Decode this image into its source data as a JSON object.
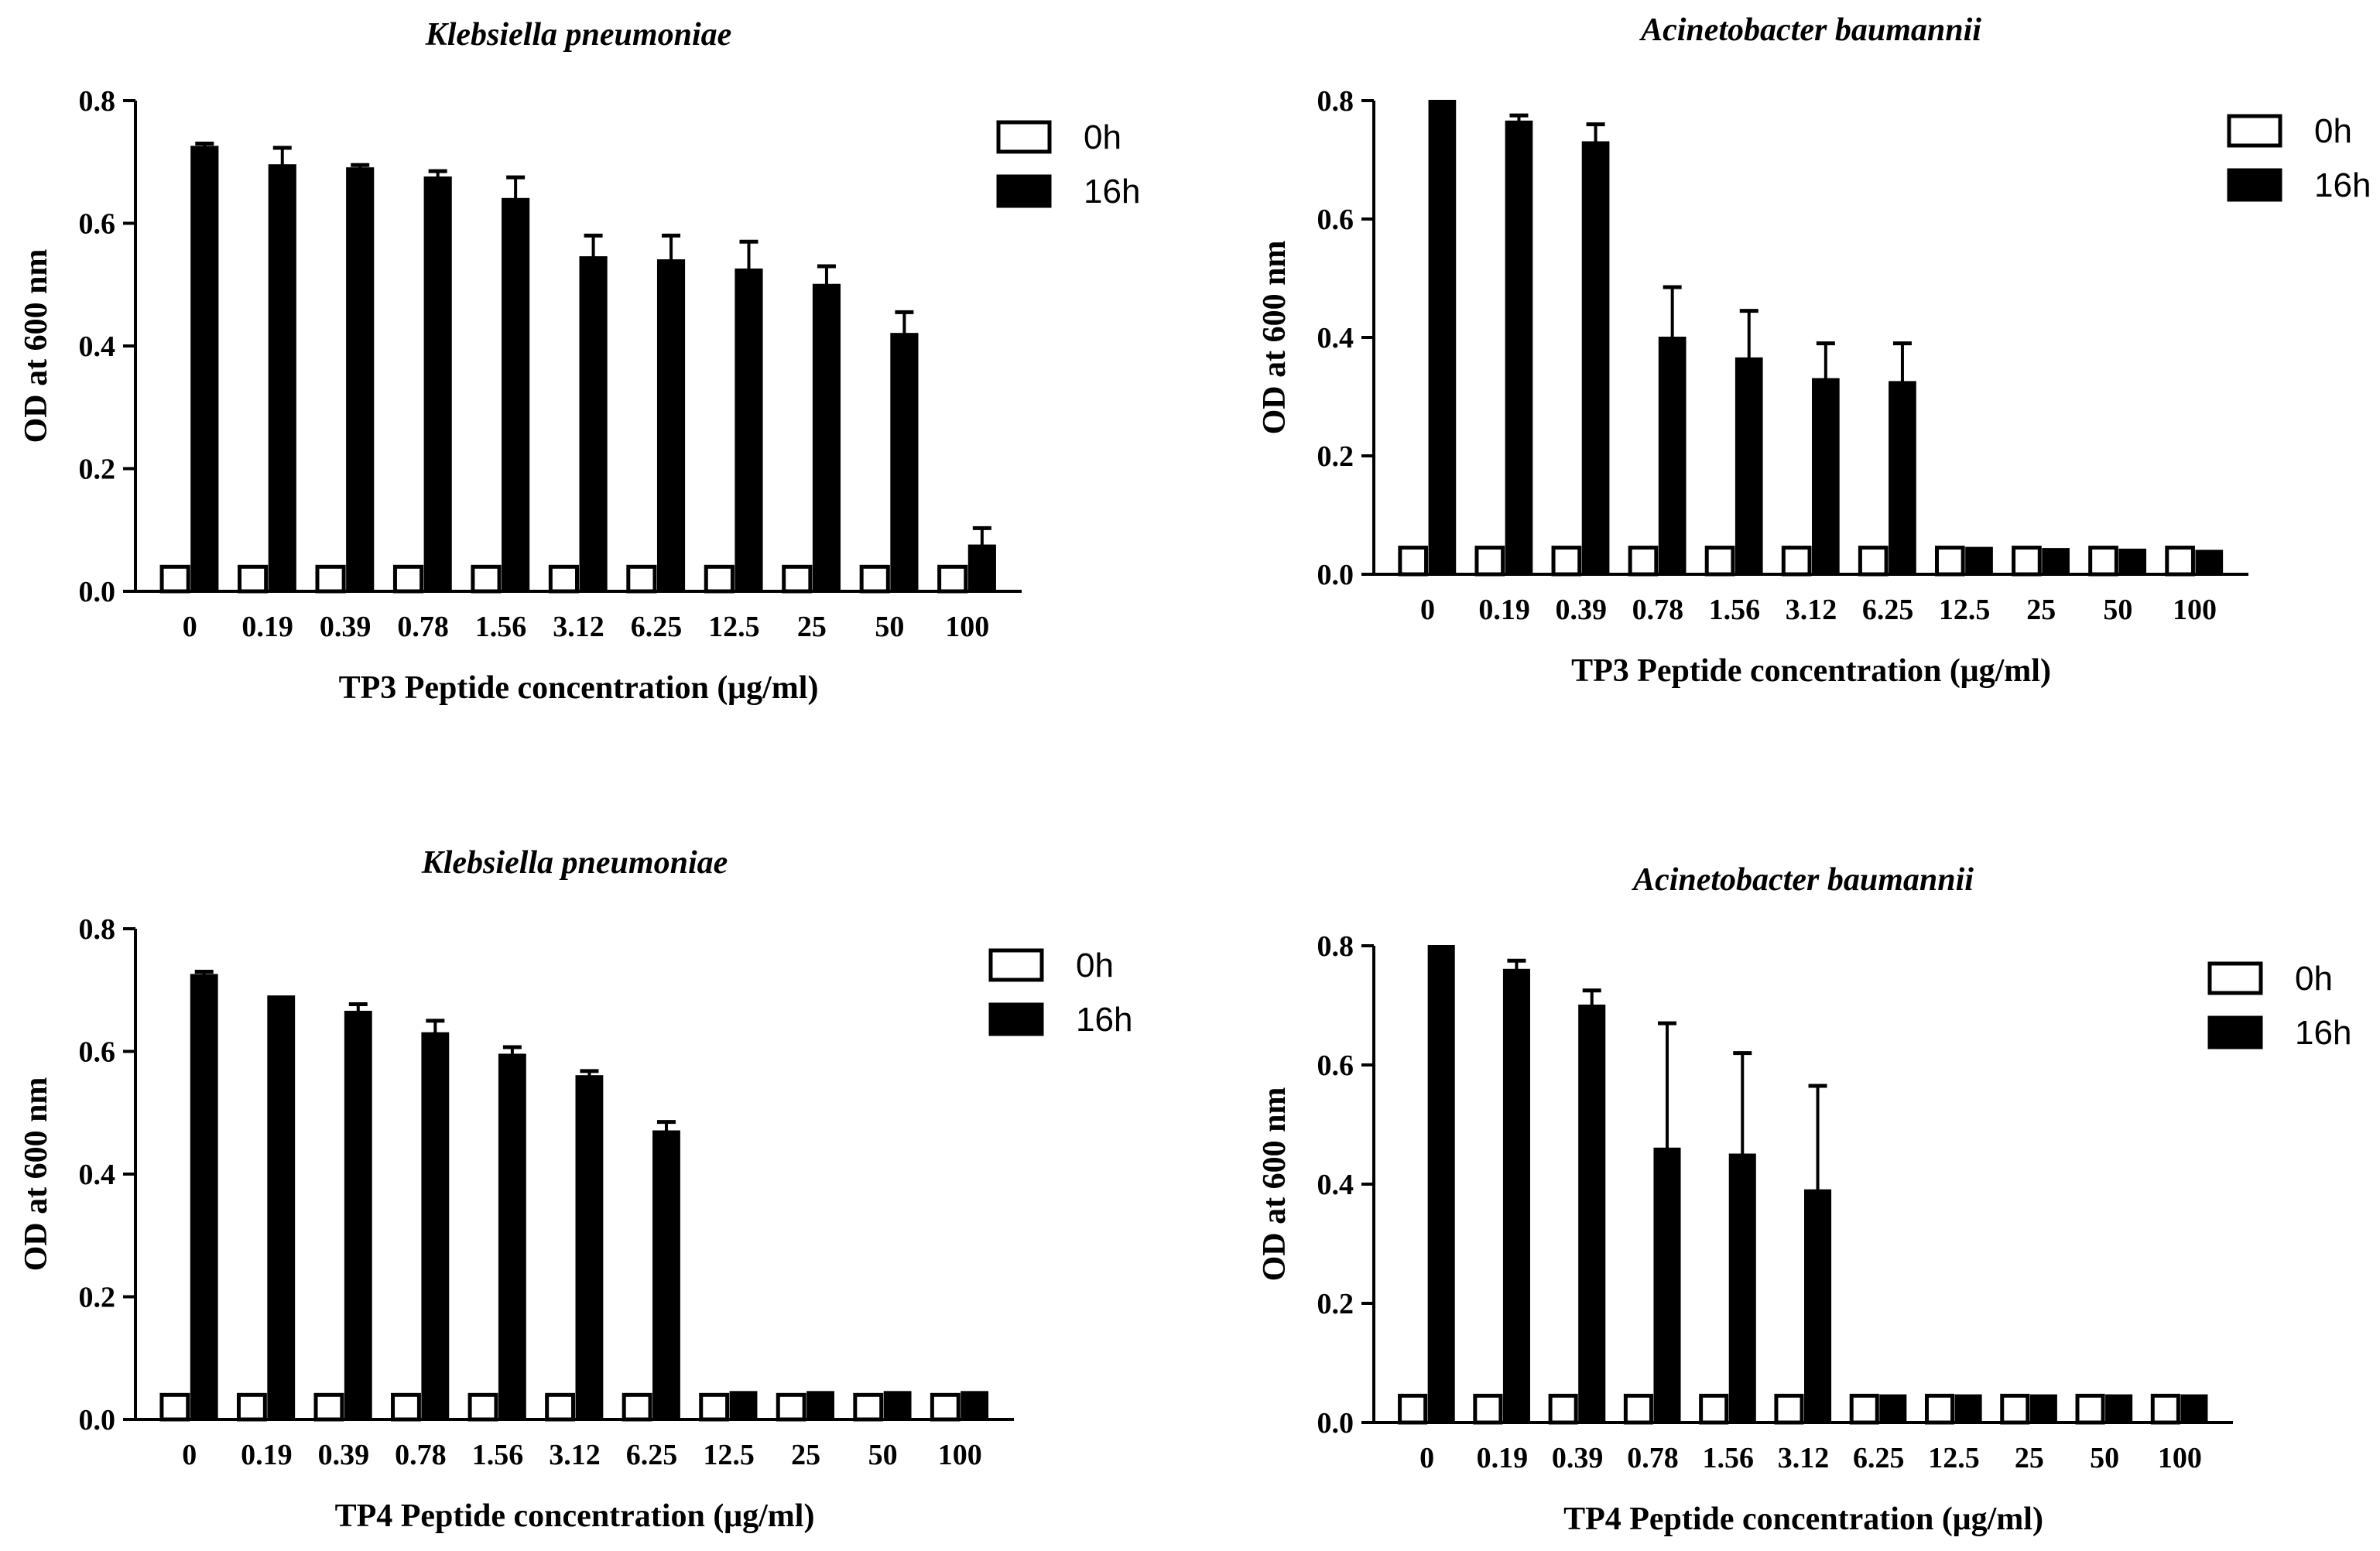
{
  "chart_data": [
    {
      "type": "bar",
      "title": "Klebsiella pneumoniae",
      "xlabel": "TP3 Peptide concentration (μg/ml)",
      "ylabel": "OD at 600 nm",
      "ylim": [
        0,
        0.8
      ],
      "yticks": [
        "0.0",
        "0.2",
        "0.4",
        "0.6",
        "0.8"
      ],
      "categories": [
        "0",
        "0.19",
        "0.39",
        "0.78",
        "1.56",
        "3.12",
        "6.25",
        "12.5",
        "25",
        "50",
        "100"
      ],
      "legend_position": "top-right",
      "series": [
        {
          "name": "0h",
          "fill": "#ffffff",
          "values": [
            0.04,
            0.04,
            0.04,
            0.04,
            0.04,
            0.04,
            0.04,
            0.04,
            0.04,
            0.04,
            0.04
          ],
          "errors": [
            0.003,
            0.003,
            0.003,
            0.003,
            0.003,
            0.003,
            0.003,
            0.003,
            0.003,
            0.003,
            0.003
          ]
        },
        {
          "name": "16h",
          "fill": "#000000",
          "values": [
            0.725,
            0.695,
            0.69,
            0.675,
            0.64,
            0.545,
            0.54,
            0.525,
            0.5,
            0.42,
            0.075
          ],
          "errors": [
            0.005,
            0.028,
            0.005,
            0.01,
            0.035,
            0.035,
            0.04,
            0.045,
            0.03,
            0.035,
            0.028
          ]
        }
      ]
    },
    {
      "type": "bar",
      "title": "Acinetobacter baumannii",
      "xlabel": "TP3 Peptide concentration (μg/ml)",
      "ylabel": "OD at 600 nm",
      "ylim": [
        0,
        0.8
      ],
      "yticks": [
        "0.0",
        "0.2",
        "0.4",
        "0.6",
        "0.8"
      ],
      "categories": [
        "0",
        "0.19",
        "0.39",
        "0.78",
        "1.56",
        "3.12",
        "6.25",
        "12.5",
        "25",
        "50",
        "100"
      ],
      "legend_position": "top-right",
      "series": [
        {
          "name": "0h",
          "fill": "#ffffff",
          "values": [
            0.045,
            0.045,
            0.045,
            0.045,
            0.045,
            0.045,
            0.045,
            0.045,
            0.045,
            0.045,
            0.045
          ],
          "errors": [
            0.003,
            0.003,
            0.003,
            0.003,
            0.003,
            0.003,
            0.003,
            0.003,
            0.003,
            0.003,
            0.003
          ]
        },
        {
          "name": "16h",
          "fill": "#000000",
          "values": [
            0.8,
            0.765,
            0.73,
            0.4,
            0.365,
            0.33,
            0.325,
            0.045,
            0.043,
            0.042,
            0.04
          ],
          "errors": [
            0.0,
            0.01,
            0.03,
            0.085,
            0.08,
            0.06,
            0.065,
            0.002,
            0.002,
            0.002,
            0.002
          ]
        }
      ]
    },
    {
      "type": "bar",
      "title": "Klebsiella pneumoniae",
      "xlabel": "TP4 Peptide concentration (μg/ml)",
      "ylabel": "OD at 600 nm",
      "ylim": [
        0,
        0.8
      ],
      "yticks": [
        "0.0",
        "0.2",
        "0.4",
        "0.6",
        "0.8"
      ],
      "categories": [
        "0",
        "0.19",
        "0.39",
        "0.78",
        "1.56",
        "3.12",
        "6.25",
        "12.5",
        "25",
        "50",
        "100"
      ],
      "legend_position": "top-right",
      "series": [
        {
          "name": "0h",
          "fill": "#ffffff",
          "values": [
            0.04,
            0.04,
            0.04,
            0.04,
            0.04,
            0.04,
            0.04,
            0.04,
            0.04,
            0.04,
            0.04
          ],
          "errors": [
            0.003,
            0.003,
            0.003,
            0.003,
            0.003,
            0.003,
            0.003,
            0.003,
            0.003,
            0.003,
            0.003
          ]
        },
        {
          "name": "16h",
          "fill": "#000000",
          "values": [
            0.725,
            0.69,
            0.665,
            0.63,
            0.595,
            0.56,
            0.47,
            0.045,
            0.045,
            0.045,
            0.045
          ],
          "errors": [
            0.005,
            0.002,
            0.012,
            0.02,
            0.012,
            0.008,
            0.015,
            0.002,
            0.002,
            0.002,
            0.002
          ]
        }
      ]
    },
    {
      "type": "bar",
      "title": "Acinetobacter baumannii",
      "xlabel": "TP4 Peptide concentration (μg/ml)",
      "ylabel": "OD at 600 nm",
      "ylim": [
        0,
        0.8
      ],
      "yticks": [
        "0.0",
        "0.2",
        "0.4",
        "0.6",
        "0.8"
      ],
      "categories": [
        "0",
        "0.19",
        "0.39",
        "0.78",
        "1.56",
        "3.12",
        "6.25",
        "12.5",
        "25",
        "50",
        "100"
      ],
      "legend_position": "top-right",
      "series": [
        {
          "name": "0h",
          "fill": "#ffffff",
          "values": [
            0.045,
            0.045,
            0.045,
            0.045,
            0.045,
            0.045,
            0.045,
            0.045,
            0.045,
            0.045,
            0.045
          ],
          "errors": [
            0.003,
            0.003,
            0.003,
            0.003,
            0.003,
            0.003,
            0.003,
            0.003,
            0.003,
            0.003,
            0.003
          ]
        },
        {
          "name": "16h",
          "fill": "#000000",
          "values": [
            0.8,
            0.76,
            0.7,
            0.46,
            0.45,
            0.39,
            0.046,
            0.046,
            0.046,
            0.046,
            0.046
          ],
          "errors": [
            0.0,
            0.015,
            0.025,
            0.21,
            0.17,
            0.175,
            0.002,
            0.002,
            0.002,
            0.002,
            0.002
          ]
        }
      ]
    }
  ]
}
